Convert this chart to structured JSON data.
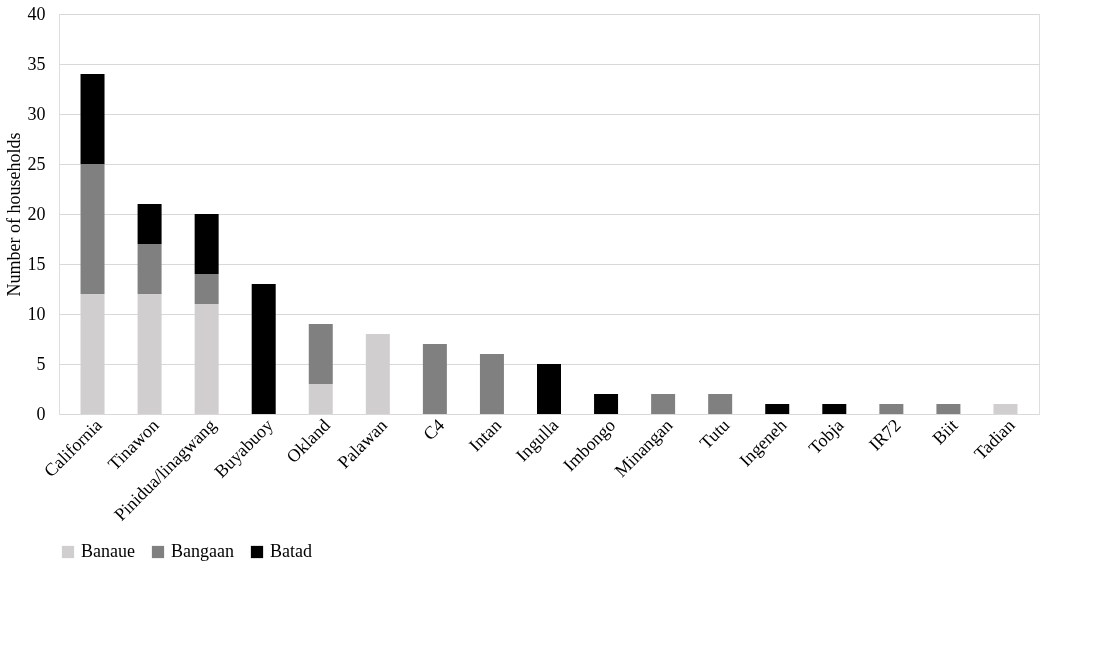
{
  "chart_data": {
    "type": "bar",
    "stacked": true,
    "ylabel": "Number of households",
    "categories": [
      "California",
      "Tinawon",
      "Pinidua/linagwang",
      "Buyabuoy",
      "Okland",
      "Palawan",
      "C4",
      "Intan",
      "Ingulla",
      "Imbongo",
      "Minangan",
      "Tutu",
      "Ingeneh",
      "Tobja",
      "IR72",
      "Biit",
      "Tadian"
    ],
    "series": [
      {
        "name": "Banaue",
        "color": "#d0cece",
        "values": [
          12,
          12,
          11,
          0,
          3,
          8,
          0,
          0,
          0,
          0,
          0,
          0,
          0,
          0,
          0,
          0,
          1
        ]
      },
      {
        "name": "Bangaan",
        "color": "#808080",
        "values": [
          13,
          5,
          3,
          0,
          6,
          0,
          7,
          6,
          0,
          0,
          2,
          2,
          0,
          0,
          1,
          1,
          0
        ]
      },
      {
        "name": "Batad",
        "color": "#000000",
        "values": [
          9,
          4,
          6,
          13,
          0,
          0,
          0,
          0,
          5,
          2,
          0,
          0,
          1,
          1,
          0,
          0,
          0
        ]
      }
    ],
    "ylim": [
      0,
      40
    ],
    "yticks": [
      0,
      5,
      10,
      15,
      20,
      25,
      30,
      35,
      40
    ],
    "grid": "y",
    "legend": "bottom"
  }
}
